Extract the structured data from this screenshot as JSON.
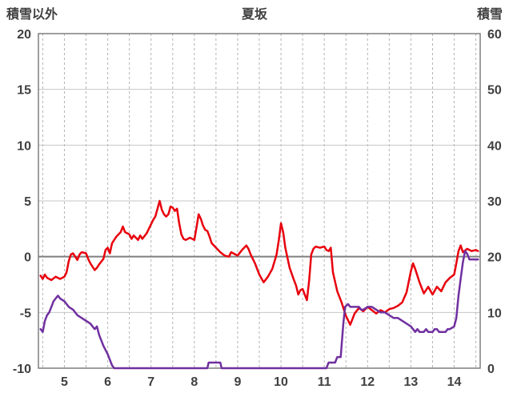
{
  "chart_data": {
    "type": "line",
    "title": "夏坂",
    "left_axis": {
      "title": "積雪以外",
      "ticks": [
        20,
        15,
        10,
        5,
        0,
        -5,
        -10
      ],
      "range": [
        -10,
        20
      ]
    },
    "right_axis": {
      "title": "積雪",
      "ticks": [
        60,
        50,
        40,
        30,
        20,
        10,
        0
      ],
      "range": [
        0,
        60
      ]
    },
    "x_ticks": [
      5,
      6,
      7,
      8,
      9,
      10,
      11,
      12,
      13,
      14
    ],
    "x_range": [
      4.4,
      14.6
    ],
    "grid": {
      "x_start": 4.5,
      "x_end": 14.5,
      "x_step": 0.5,
      "emphasis_left_value": 0
    },
    "colors": {
      "series_left": "#e8000d",
      "series_right": "#7030a0",
      "grid_h": "#c6c6c6",
      "grid_v": "#b3b3b3",
      "zero_line": "#7f7f7f",
      "border": "#7f7f7f",
      "text": "#404040",
      "background": "#ffffff"
    },
    "series": [
      {
        "name": "積雪以外",
        "axis": "left",
        "color": "#e8000d",
        "points": [
          [
            4.45,
            -1.7
          ],
          [
            4.5,
            -2.0
          ],
          [
            4.55,
            -1.6
          ],
          [
            4.6,
            -1.9
          ],
          [
            4.7,
            -2.1
          ],
          [
            4.8,
            -1.8
          ],
          [
            4.9,
            -2.0
          ],
          [
            5.0,
            -1.8
          ],
          [
            5.05,
            -1.4
          ],
          [
            5.1,
            -0.4
          ],
          [
            5.15,
            0.2
          ],
          [
            5.2,
            0.3
          ],
          [
            5.25,
            0.0
          ],
          [
            5.3,
            -0.3
          ],
          [
            5.35,
            0.2
          ],
          [
            5.4,
            0.4
          ],
          [
            5.5,
            0.3
          ],
          [
            5.55,
            -0.2
          ],
          [
            5.6,
            -0.6
          ],
          [
            5.7,
            -1.2
          ],
          [
            5.75,
            -1.0
          ],
          [
            5.8,
            -0.7
          ],
          [
            5.9,
            -0.2
          ],
          [
            5.95,
            0.6
          ],
          [
            6.0,
            0.8
          ],
          [
            6.05,
            0.3
          ],
          [
            6.1,
            1.2
          ],
          [
            6.2,
            1.8
          ],
          [
            6.3,
            2.2
          ],
          [
            6.35,
            2.7
          ],
          [
            6.4,
            2.2
          ],
          [
            6.45,
            2.1
          ],
          [
            6.5,
            2.0
          ],
          [
            6.55,
            1.6
          ],
          [
            6.6,
            1.9
          ],
          [
            6.65,
            1.7
          ],
          [
            6.7,
            1.5
          ],
          [
            6.75,
            1.9
          ],
          [
            6.8,
            1.6
          ],
          [
            6.9,
            2.1
          ],
          [
            6.95,
            2.5
          ],
          [
            7.0,
            2.9
          ],
          [
            7.05,
            3.3
          ],
          [
            7.1,
            3.6
          ],
          [
            7.15,
            4.3
          ],
          [
            7.2,
            5.0
          ],
          [
            7.25,
            4.2
          ],
          [
            7.3,
            3.8
          ],
          [
            7.35,
            3.6
          ],
          [
            7.4,
            3.8
          ],
          [
            7.45,
            4.5
          ],
          [
            7.5,
            4.4
          ],
          [
            7.55,
            4.1
          ],
          [
            7.6,
            4.3
          ],
          [
            7.65,
            3.0
          ],
          [
            7.7,
            2.0
          ],
          [
            7.75,
            1.6
          ],
          [
            7.8,
            1.5
          ],
          [
            7.9,
            1.7
          ],
          [
            8.0,
            1.5
          ],
          [
            8.05,
            2.6
          ],
          [
            8.1,
            3.8
          ],
          [
            8.15,
            3.4
          ],
          [
            8.2,
            2.8
          ],
          [
            8.25,
            2.4
          ],
          [
            8.3,
            2.3
          ],
          [
            8.35,
            1.8
          ],
          [
            8.4,
            1.2
          ],
          [
            8.5,
            0.8
          ],
          [
            8.6,
            0.4
          ],
          [
            8.7,
            0.1
          ],
          [
            8.8,
            0.0
          ],
          [
            8.85,
            0.4
          ],
          [
            8.9,
            0.3
          ],
          [
            9.0,
            0.1
          ],
          [
            9.1,
            0.6
          ],
          [
            9.2,
            1.0
          ],
          [
            9.25,
            0.7
          ],
          [
            9.3,
            0.2
          ],
          [
            9.4,
            -0.6
          ],
          [
            9.5,
            -1.6
          ],
          [
            9.6,
            -2.3
          ],
          [
            9.7,
            -1.8
          ],
          [
            9.8,
            -1.1
          ],
          [
            9.9,
            0.2
          ],
          [
            9.95,
            1.5
          ],
          [
            10.0,
            3.0
          ],
          [
            10.05,
            2.2
          ],
          [
            10.1,
            0.8
          ],
          [
            10.2,
            -1.0
          ],
          [
            10.3,
            -2.1
          ],
          [
            10.35,
            -2.6
          ],
          [
            10.4,
            -3.4
          ],
          [
            10.45,
            -3.0
          ],
          [
            10.5,
            -2.9
          ],
          [
            10.55,
            -3.4
          ],
          [
            10.6,
            -3.9
          ],
          [
            10.65,
            -2.2
          ],
          [
            10.7,
            0.2
          ],
          [
            10.75,
            0.7
          ],
          [
            10.8,
            0.9
          ],
          [
            10.9,
            0.8
          ],
          [
            11.0,
            0.9
          ],
          [
            11.05,
            0.6
          ],
          [
            11.1,
            0.5
          ],
          [
            11.15,
            0.8
          ],
          [
            11.2,
            -1.4
          ],
          [
            11.3,
            -3.1
          ],
          [
            11.4,
            -4.1
          ],
          [
            11.5,
            -5.3
          ],
          [
            11.6,
            -6.1
          ],
          [
            11.65,
            -5.6
          ],
          [
            11.7,
            -5.1
          ],
          [
            11.8,
            -4.6
          ],
          [
            11.9,
            -4.9
          ],
          [
            12.0,
            -4.5
          ],
          [
            12.1,
            -4.8
          ],
          [
            12.2,
            -5.1
          ],
          [
            12.3,
            -4.8
          ],
          [
            12.4,
            -5.0
          ],
          [
            12.5,
            -4.7
          ],
          [
            12.6,
            -4.6
          ],
          [
            12.7,
            -4.4
          ],
          [
            12.8,
            -4.1
          ],
          [
            12.9,
            -3.2
          ],
          [
            13.0,
            -1.3
          ],
          [
            13.05,
            -0.6
          ],
          [
            13.1,
            -1.1
          ],
          [
            13.2,
            -2.3
          ],
          [
            13.3,
            -3.3
          ],
          [
            13.4,
            -2.7
          ],
          [
            13.5,
            -3.4
          ],
          [
            13.6,
            -2.7
          ],
          [
            13.7,
            -3.1
          ],
          [
            13.8,
            -2.3
          ],
          [
            13.9,
            -1.9
          ],
          [
            14.0,
            -1.6
          ],
          [
            14.05,
            -0.6
          ],
          [
            14.1,
            0.5
          ],
          [
            14.15,
            1.0
          ],
          [
            14.2,
            0.4
          ],
          [
            14.3,
            0.7
          ],
          [
            14.4,
            0.5
          ],
          [
            14.5,
            0.6
          ],
          [
            14.55,
            0.5
          ]
        ]
      },
      {
        "name": "積雪",
        "axis": "right",
        "color": "#7030a0",
        "points": [
          [
            4.45,
            7
          ],
          [
            4.5,
            6.5
          ],
          [
            4.55,
            8.5
          ],
          [
            4.6,
            9.5
          ],
          [
            4.65,
            10
          ],
          [
            4.7,
            11
          ],
          [
            4.75,
            12
          ],
          [
            4.8,
            12.5
          ],
          [
            4.85,
            13
          ],
          [
            4.9,
            12.5
          ],
          [
            5.0,
            12
          ],
          [
            5.05,
            11.5
          ],
          [
            5.1,
            11
          ],
          [
            5.2,
            10.5
          ],
          [
            5.3,
            9.5
          ],
          [
            5.4,
            9
          ],
          [
            5.5,
            8.5
          ],
          [
            5.6,
            8
          ],
          [
            5.65,
            7.5
          ],
          [
            5.7,
            7
          ],
          [
            5.75,
            7.5
          ],
          [
            5.8,
            6
          ],
          [
            5.85,
            5
          ],
          [
            5.9,
            4
          ],
          [
            6.0,
            2.5
          ],
          [
            6.05,
            1.5
          ],
          [
            6.1,
            0.5
          ],
          [
            6.15,
            0
          ],
          [
            8.3,
            0
          ],
          [
            8.33,
            1
          ],
          [
            8.6,
            1
          ],
          [
            8.63,
            0
          ],
          [
            11.05,
            0
          ],
          [
            11.1,
            1
          ],
          [
            11.25,
            1
          ],
          [
            11.3,
            2
          ],
          [
            11.38,
            2
          ],
          [
            11.4,
            4
          ],
          [
            11.44,
            8
          ],
          [
            11.48,
            11
          ],
          [
            11.55,
            11.5
          ],
          [
            11.6,
            11
          ],
          [
            11.7,
            11
          ],
          [
            11.8,
            11
          ],
          [
            11.85,
            10.5
          ],
          [
            11.9,
            10.5
          ],
          [
            12.0,
            11
          ],
          [
            12.1,
            11
          ],
          [
            12.2,
            10.5
          ],
          [
            12.3,
            10
          ],
          [
            12.4,
            10
          ],
          [
            12.5,
            9.5
          ],
          [
            12.6,
            9
          ],
          [
            12.7,
            9
          ],
          [
            12.8,
            8.5
          ],
          [
            12.9,
            8
          ],
          [
            13.0,
            7.5
          ],
          [
            13.05,
            7
          ],
          [
            13.1,
            6.5
          ],
          [
            13.15,
            7
          ],
          [
            13.2,
            6.5
          ],
          [
            13.3,
            6.5
          ],
          [
            13.35,
            7
          ],
          [
            13.4,
            6.5
          ],
          [
            13.5,
            6.5
          ],
          [
            13.55,
            7
          ],
          [
            13.6,
            7
          ],
          [
            13.65,
            6.5
          ],
          [
            13.7,
            6.5
          ],
          [
            13.8,
            6.5
          ],
          [
            13.85,
            7
          ],
          [
            13.9,
            7
          ],
          [
            14.0,
            7.5
          ],
          [
            14.05,
            9
          ],
          [
            14.1,
            13
          ],
          [
            14.15,
            16
          ],
          [
            14.2,
            19
          ],
          [
            14.25,
            21
          ],
          [
            14.3,
            20.5
          ],
          [
            14.35,
            19.5
          ],
          [
            14.45,
            19.5
          ],
          [
            14.55,
            19.5
          ]
        ]
      }
    ]
  }
}
